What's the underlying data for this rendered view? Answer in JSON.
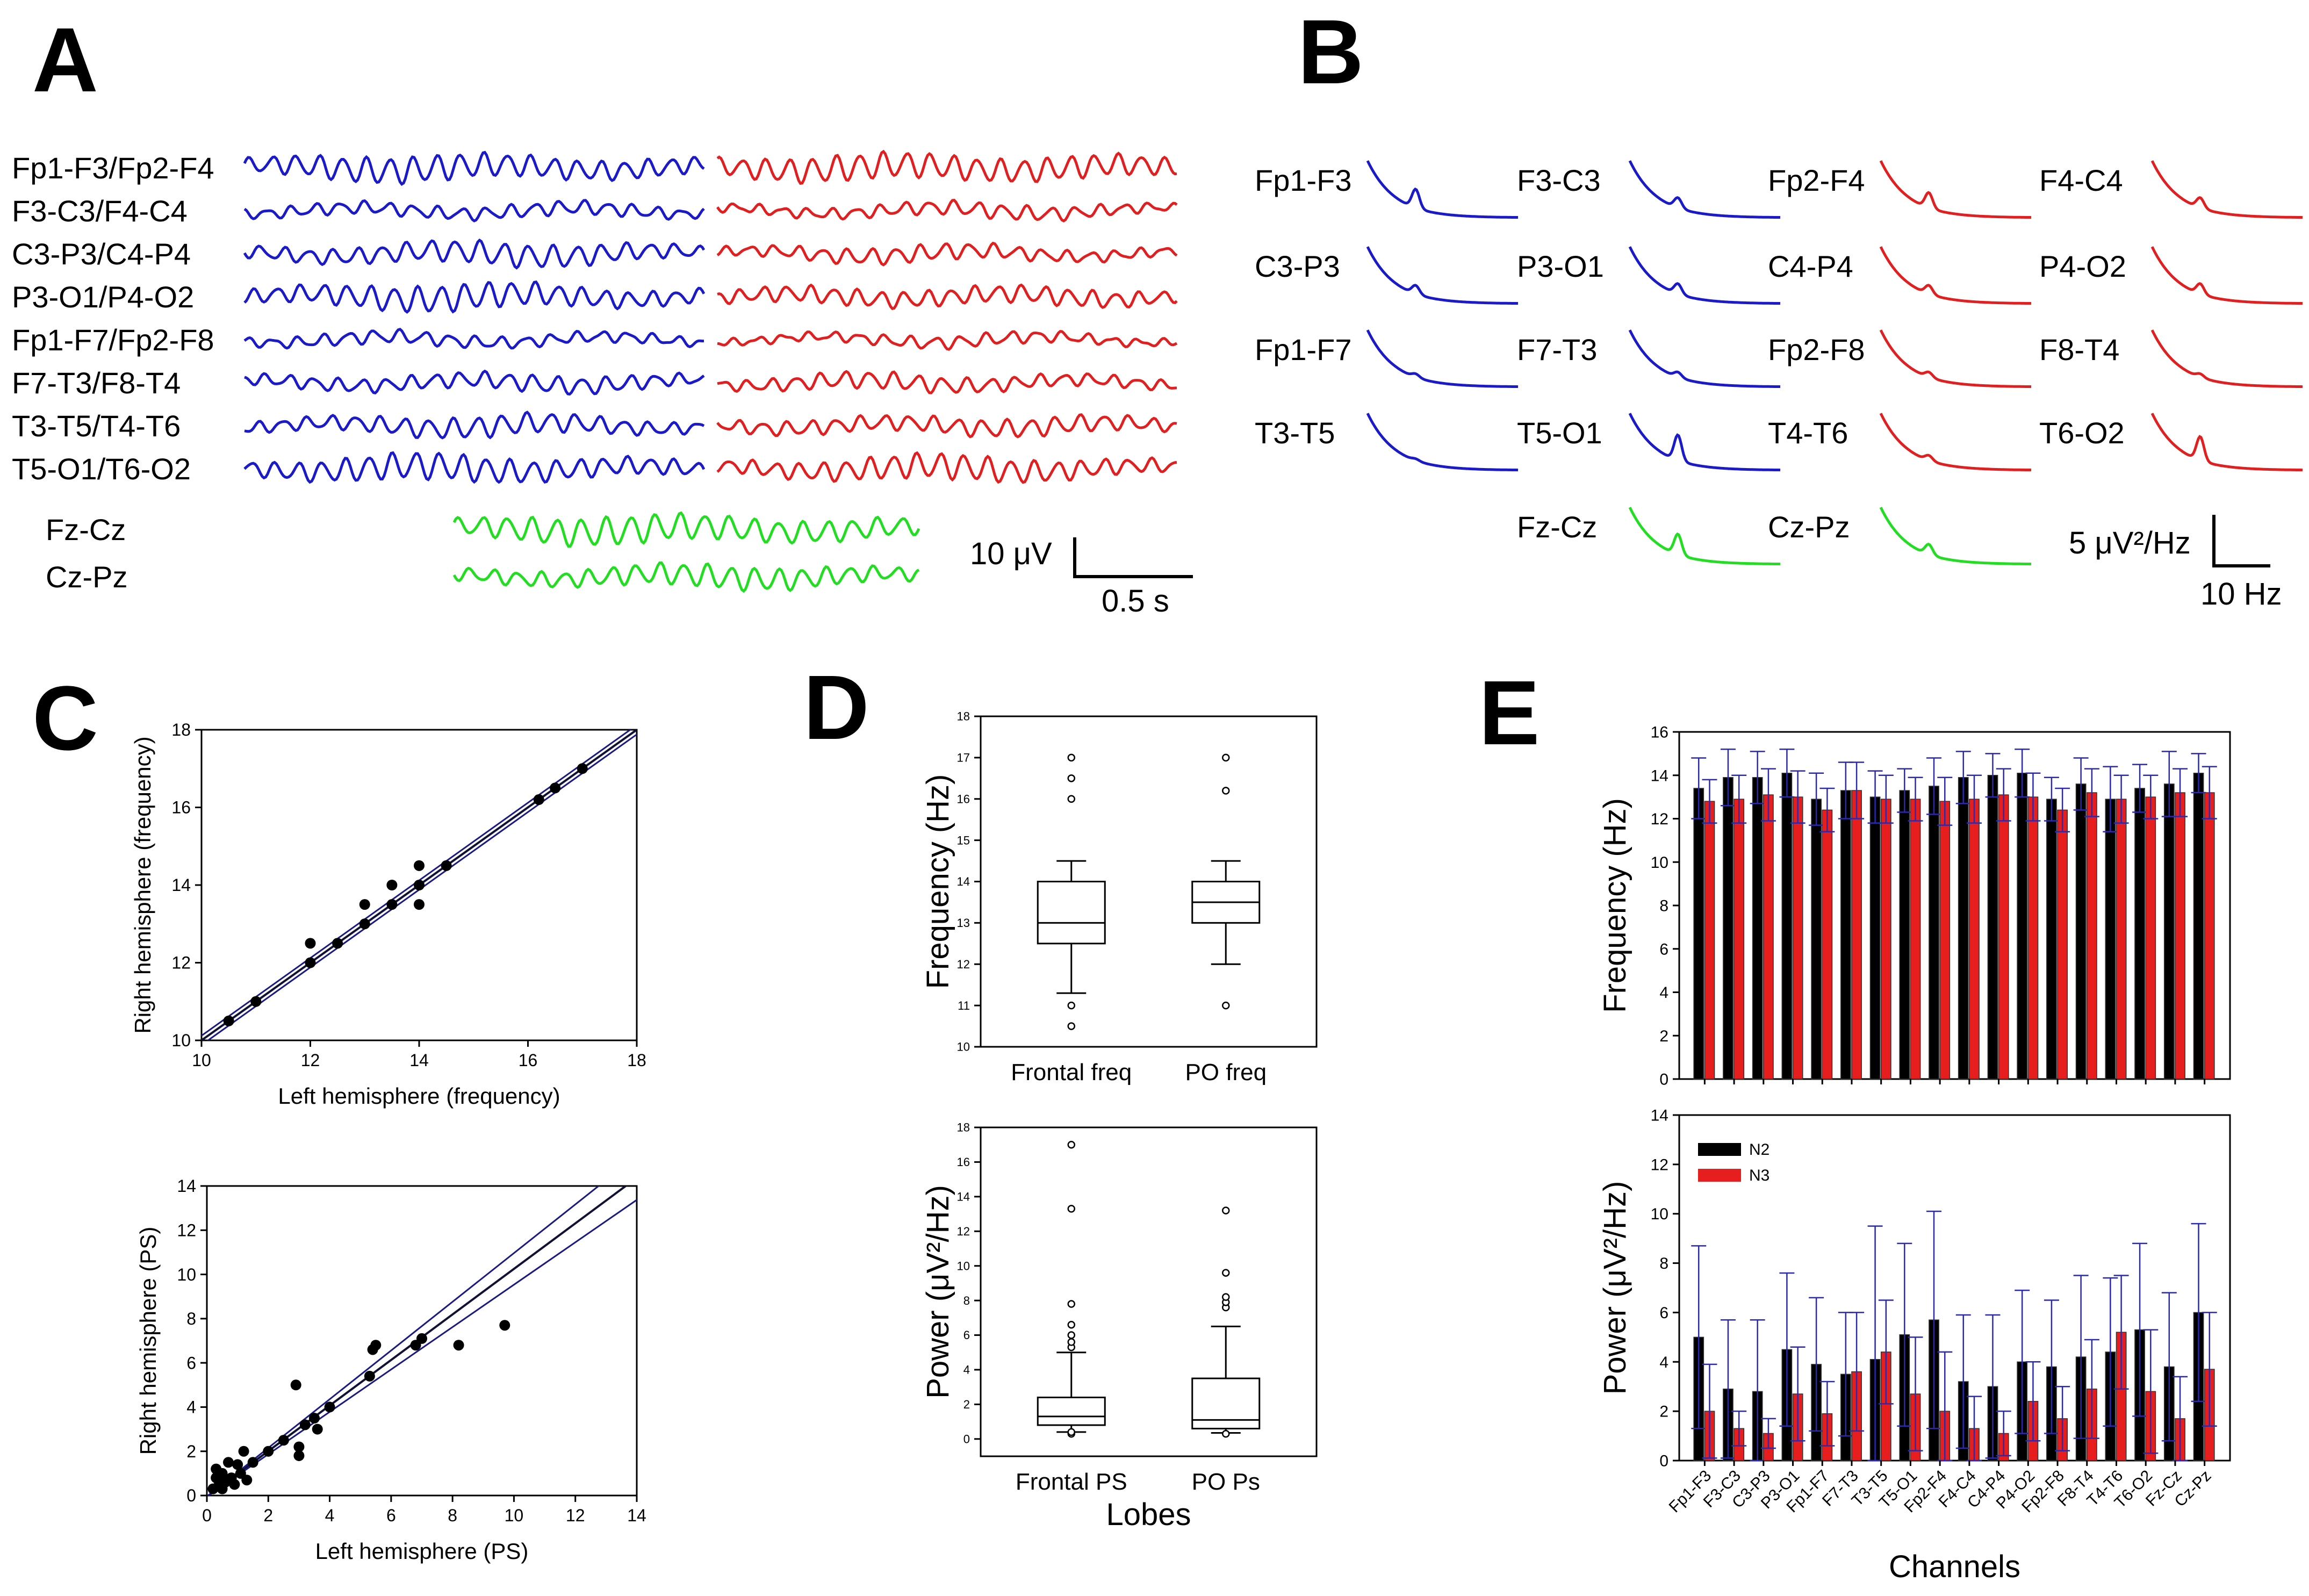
{
  "panels": {
    "a": "A",
    "b": "B",
    "c": "C",
    "d": "D",
    "e": "E"
  },
  "colors": {
    "left": "#1a1ac8",
    "right": "#e02020",
    "midline": "#22dd22",
    "n2": "#000000",
    "n3": "#e61e1e",
    "err": "#2a2aaa",
    "fit": "#1a1a80"
  },
  "panel_a": {
    "rows": [
      {
        "label": "Fp1-F3/Fp2-F4",
        "amp_left": 1.0,
        "amp_right": 1.1,
        "freq": 13.5
      },
      {
        "label": "F3-C3/F4-C4",
        "amp_left": 0.55,
        "amp_right": 0.5,
        "freq": 13.0
      },
      {
        "label": "C3-P3/C4-P4",
        "amp_left": 0.8,
        "amp_right": 0.55,
        "freq": 13.0
      },
      {
        "label": "P3-O1/P4-O2",
        "amp_left": 0.9,
        "amp_right": 0.75,
        "freq": 13.5
      },
      {
        "label": "Fp1-F7/Fp2-F8",
        "amp_left": 0.5,
        "amp_right": 0.4,
        "freq": 12.5
      },
      {
        "label": "F7-T3/F8-T4",
        "amp_left": 0.65,
        "amp_right": 0.6,
        "freq": 13.0
      },
      {
        "label": "T3-T5/T4-T6",
        "amp_left": 0.7,
        "amp_right": 0.7,
        "freq": 13.0
      },
      {
        "label": "T5-O1/T6-O2",
        "amp_left": 0.95,
        "amp_right": 0.85,
        "freq": 13.5
      }
    ],
    "midline_rows": [
      {
        "label": "Fz-Cz",
        "amp": 1.1,
        "freq": 13.0
      },
      {
        "label": "Cz-Pz",
        "amp": 0.8,
        "freq": 13.5
      }
    ],
    "scale_amp": "10 μV",
    "scale_time": "0.5 s"
  },
  "panel_b": {
    "spectra": [
      {
        "label": "Fp1-F3",
        "side": "left",
        "peak": 0.55
      },
      {
        "label": "F3-C3",
        "side": "left",
        "peak": 0.3
      },
      {
        "label": "Fp2-F4",
        "side": "right",
        "peak": 0.45
      },
      {
        "label": "F4-C4",
        "side": "right",
        "peak": 0.3
      },
      {
        "label": "C3-P3",
        "side": "left",
        "peak": 0.25
      },
      {
        "label": "P3-O1",
        "side": "left",
        "peak": 0.3
      },
      {
        "label": "C4-P4",
        "side": "right",
        "peak": 0.25
      },
      {
        "label": "P4-O2",
        "side": "right",
        "peak": 0.3
      },
      {
        "label": "Fp1-F7",
        "side": "left",
        "peak": 0.1
      },
      {
        "label": "F7-T3",
        "side": "left",
        "peak": 0.15
      },
      {
        "label": "Fp2-F8",
        "side": "right",
        "peak": 0.15
      },
      {
        "label": "F8-T4",
        "side": "right",
        "peak": 0.1
      },
      {
        "label": "T3-T5",
        "side": "left",
        "peak": 0.05
      },
      {
        "label": "T5-O1",
        "side": "left",
        "peak": 0.75
      },
      {
        "label": "T4-T6",
        "side": "right",
        "peak": 0.15
      },
      {
        "label": "T6-O2",
        "side": "right",
        "peak": 0.7
      },
      {
        "label": "Fz-Cz",
        "side": "midline",
        "peak": 0.6
      },
      {
        "label": "Cz-Pz",
        "side": "midline",
        "peak": 0.3
      }
    ],
    "scale_power": "5 μV²/Hz",
    "scale_freq": "10 Hz"
  },
  "chart_data": [
    {
      "type": "scatter",
      "panel": "C",
      "xlabel": "Left hemisphere (frequency)",
      "ylabel": "Right hemisphere (frequency)",
      "xlim": [
        10,
        18
      ],
      "ylim": [
        10,
        18
      ],
      "xticks": [
        10,
        12,
        14,
        16,
        18
      ],
      "yticks": [
        10,
        12,
        14,
        16,
        18
      ],
      "points": [
        [
          10.5,
          10.5
        ],
        [
          11,
          11
        ],
        [
          12,
          12
        ],
        [
          12,
          12.5
        ],
        [
          12.5,
          12.5
        ],
        [
          13,
          13
        ],
        [
          13,
          13.5
        ],
        [
          13.5,
          13.5
        ],
        [
          13.5,
          14
        ],
        [
          14,
          13.5
        ],
        [
          14,
          14
        ],
        [
          14,
          14.5
        ],
        [
          14.5,
          14.5
        ],
        [
          16.2,
          16.2
        ],
        [
          16.5,
          16.5
        ],
        [
          17,
          17
        ]
      ],
      "fit": {
        "slope": 1.0,
        "intercept": 0.0,
        "band": 0.12
      }
    },
    {
      "type": "scatter",
      "panel": "C",
      "xlabel": "Left hemisphere (PS)",
      "ylabel": "Right hemisphere (PS)",
      "xlim": [
        0,
        14
      ],
      "ylim": [
        0,
        14
      ],
      "xticks": [
        0,
        2,
        4,
        6,
        8,
        10,
        12,
        14
      ],
      "yticks": [
        0,
        2,
        4,
        6,
        8,
        10,
        12,
        14
      ],
      "points": [
        [
          0.2,
          0.3
        ],
        [
          0.3,
          0.8
        ],
        [
          0.3,
          1.2
        ],
        [
          0.4,
          0.5
        ],
        [
          0.5,
          1.0
        ],
        [
          0.5,
          0.3
        ],
        [
          0.6,
          0.6
        ],
        [
          0.7,
          1.5
        ],
        [
          0.8,
          0.8
        ],
        [
          0.9,
          0.5
        ],
        [
          1.0,
          1.4
        ],
        [
          1.1,
          1.0
        ],
        [
          1.2,
          2.0
        ],
        [
          1.3,
          0.7
        ],
        [
          1.5,
          1.5
        ],
        [
          2.0,
          2.0
        ],
        [
          2.5,
          2.5
        ],
        [
          2.9,
          5.0
        ],
        [
          3.0,
          1.8
        ],
        [
          3.0,
          2.2
        ],
        [
          3.2,
          3.2
        ],
        [
          3.5,
          3.5
        ],
        [
          3.6,
          3.0
        ],
        [
          4.0,
          4.0
        ],
        [
          5.3,
          5.4
        ],
        [
          5.4,
          6.6
        ],
        [
          5.5,
          6.8
        ],
        [
          6.8,
          6.8
        ],
        [
          7.0,
          7.1
        ],
        [
          8.2,
          6.8
        ],
        [
          9.7,
          7.7
        ]
      ],
      "fit": {
        "slope": 1.03,
        "intercept": -0.05,
        "band_at_max": 1.0
      }
    },
    {
      "type": "box",
      "panel": "D",
      "ylabel": "Frequency (Hz)",
      "ylim": [
        10,
        18
      ],
      "yticks": [
        10,
        11,
        12,
        13,
        14,
        15,
        16,
        17,
        18
      ],
      "categories": [
        "Frontal freq",
        "PO freq"
      ],
      "boxes": [
        {
          "q1": 12.5,
          "median": 13.0,
          "q3": 14.0,
          "whisker_low": 11.3,
          "whisker_high": 14.5,
          "outliers": [
            11.0,
            10.5,
            16.0,
            16.5,
            17.0
          ]
        },
        {
          "q1": 13.0,
          "median": 13.5,
          "q3": 14.0,
          "whisker_low": 12.0,
          "whisker_high": 14.5,
          "outliers": [
            11.0,
            16.2,
            17.0
          ]
        }
      ]
    },
    {
      "type": "box",
      "panel": "D",
      "ylabel": "Power (μV²/Hz)",
      "xlabel": "Lobes",
      "ylim": [
        -1,
        18
      ],
      "yticks": [
        0,
        2,
        4,
        6,
        8,
        10,
        12,
        14,
        16,
        18
      ],
      "categories": [
        "Frontal PS",
        "PO Ps"
      ],
      "boxes": [
        {
          "q1": 0.8,
          "median": 1.3,
          "q3": 2.4,
          "whisker_low": 0.4,
          "whisker_high": 5.0,
          "outliers": [
            0.3,
            0.4,
            5.3,
            5.6,
            6.0,
            6.6,
            7.8,
            13.3,
            17.0
          ]
        },
        {
          "q1": 0.6,
          "median": 1.1,
          "q3": 3.5,
          "whisker_low": 0.35,
          "whisker_high": 6.5,
          "outliers": [
            0.3,
            7.6,
            7.9,
            8.2,
            9.6,
            13.2
          ]
        }
      ]
    },
    {
      "type": "bar",
      "panel": "E",
      "ylabel": "Frequency (Hz)",
      "ylim": [
        0,
        16
      ],
      "yticks": [
        0,
        2,
        4,
        6,
        8,
        10,
        12,
        14,
        16
      ],
      "categories": [
        "Fp1-F3",
        "F3-C3",
        "C3-P3",
        "P3-O1",
        "Fp1-F7",
        "F7-T3",
        "T3-T5",
        "T5-O1",
        "Fp2-F4",
        "F4-C4",
        "C4-P4",
        "P4-O2",
        "Fp2-F8",
        "F8-T4",
        "T4-T6",
        "T6-O2",
        "Fz-Cz",
        "Cz-Pz"
      ],
      "series": [
        {
          "name": "N2",
          "values": [
            13.4,
            13.9,
            13.9,
            14.1,
            12.9,
            13.3,
            13.0,
            13.3,
            13.5,
            13.9,
            14.0,
            14.1,
            12.9,
            13.6,
            12.9,
            13.4,
            13.6,
            14.1
          ],
          "errors": [
            1.4,
            1.3,
            1.2,
            1.1,
            1.2,
            1.3,
            1.2,
            1.0,
            1.3,
            1.2,
            1.0,
            1.1,
            1.0,
            1.2,
            1.5,
            1.1,
            1.5,
            0.9
          ]
        },
        {
          "name": "N3",
          "values": [
            12.8,
            12.9,
            13.1,
            13.0,
            12.4,
            13.3,
            12.9,
            12.9,
            12.8,
            12.9,
            13.1,
            13.0,
            12.4,
            13.2,
            12.9,
            13.0,
            13.2,
            13.2
          ],
          "errors": [
            1.0,
            1.1,
            1.2,
            1.2,
            1.0,
            1.3,
            1.1,
            1.0,
            1.1,
            1.1,
            1.2,
            1.1,
            1.0,
            1.1,
            1.1,
            1.0,
            1.1,
            1.2
          ]
        }
      ]
    },
    {
      "type": "bar",
      "panel": "E",
      "ylabel": "Power (μV²/Hz)",
      "xlabel": "Channels",
      "ylim": [
        0,
        14
      ],
      "yticks": [
        0,
        2,
        4,
        6,
        8,
        10,
        12,
        14
      ],
      "legend": [
        "N2",
        "N3"
      ],
      "categories": [
        "Fp1-F3",
        "F3-C3",
        "C3-P3",
        "P3-O1",
        "Fp1-F7",
        "F7-T3",
        "T3-T5",
        "T5-O1",
        "Fp2-F4",
        "F4-C4",
        "C4-P4",
        "P4-O2",
        "Fp2-F8",
        "F8-T4",
        "T4-T6",
        "T6-O2",
        "Fz-Cz",
        "Cz-Pz"
      ],
      "series": [
        {
          "name": "N2",
          "values": [
            5.0,
            2.9,
            2.8,
            4.5,
            3.9,
            3.5,
            4.1,
            5.1,
            5.7,
            3.2,
            3.0,
            4.0,
            3.8,
            4.2,
            4.4,
            5.3,
            3.8,
            6.0
          ],
          "errors": [
            3.7,
            2.8,
            2.9,
            3.1,
            2.7,
            2.5,
            5.4,
            3.7,
            4.4,
            2.7,
            2.9,
            2.9,
            2.7,
            3.3,
            3.0,
            3.5,
            3.0,
            3.6
          ]
        },
        {
          "name": "N3",
          "values": [
            2.0,
            1.3,
            1.1,
            2.7,
            1.9,
            3.6,
            4.4,
            2.7,
            2.0,
            1.3,
            1.1,
            2.4,
            1.7,
            2.9,
            5.2,
            2.8,
            1.7,
            3.7
          ],
          "errors": [
            1.9,
            0.7,
            0.6,
            1.9,
            1.3,
            2.4,
            2.1,
            2.3,
            2.4,
            1.3,
            0.9,
            1.6,
            1.3,
            2.0,
            2.3,
            2.5,
            1.7,
            2.3
          ]
        }
      ]
    }
  ]
}
